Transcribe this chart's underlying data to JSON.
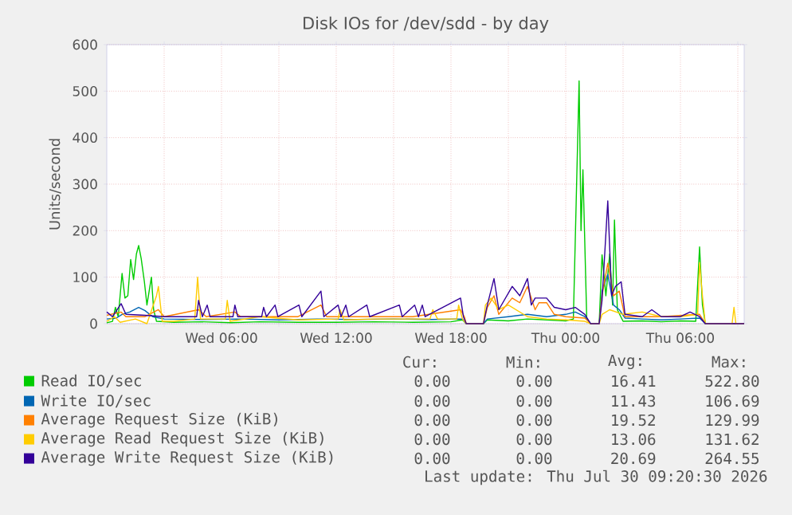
{
  "chart_data": {
    "type": "line",
    "title": "Disk IOs for /dev/sdd - by day",
    "ylabel": "Units/second",
    "xlim": [
      "2026-07-29T00:00",
      "2026-07-30T09:20"
    ],
    "ylim": [
      0,
      600
    ],
    "xticks": [
      {
        "value": "2026-07-29T03:00",
        "label": null
      },
      {
        "value": "2026-07-29T06:00",
        "label": "Wed 06:00"
      },
      {
        "value": "2026-07-29T09:00",
        "label": null
      },
      {
        "value": "2026-07-29T12:00",
        "label": "Wed 12:00"
      },
      {
        "value": "2026-07-29T15:00",
        "label": null
      },
      {
        "value": "2026-07-29T18:00",
        "label": "Wed 18:00"
      },
      {
        "value": "2026-07-29T21:00",
        "label": null
      },
      {
        "value": "2026-07-30T00:00",
        "label": "Thu 00:00"
      },
      {
        "value": "2026-07-30T03:00",
        "label": null
      },
      {
        "value": "2026-07-30T06:00",
        "label": "Thu 06:00"
      },
      {
        "value": "2026-07-30T09:00",
        "label": null
      }
    ],
    "yticks": [
      0,
      100,
      200,
      300,
      400,
      500,
      600
    ],
    "grid": true,
    "legend": "bottom",
    "series": [
      {
        "name": "Read IO/sec",
        "color": "#00cc00",
        "x": [
          "2026-07-29T00:00",
          "2026-07-29T00:18",
          "2026-07-29T00:27",
          "2026-07-29T00:36",
          "2026-07-29T00:48",
          "2026-07-29T00:57",
          "2026-07-29T01:06",
          "2026-07-29T01:15",
          "2026-07-29T01:24",
          "2026-07-29T01:33",
          "2026-07-29T01:40",
          "2026-07-29T01:48",
          "2026-07-29T01:58",
          "2026-07-29T02:06",
          "2026-07-29T02:20",
          "2026-07-29T02:27",
          "2026-07-29T02:36",
          "2026-07-29T03:30",
          "2026-07-29T05:00",
          "2026-07-29T06:30",
          "2026-07-29T08:00",
          "2026-07-29T10:00",
          "2026-07-29T12:00",
          "2026-07-29T14:00",
          "2026-07-29T16:00",
          "2026-07-29T18:00",
          "2026-07-29T18:36",
          "2026-07-29T18:48",
          "2026-07-29T19:42",
          "2026-07-29T19:54",
          "2026-07-29T21:00",
          "2026-07-29T22:00",
          "2026-07-29T23:00",
          "2026-07-30T00:00",
          "2026-07-30T00:24",
          "2026-07-30T00:42",
          "2026-07-30T00:48",
          "2026-07-30T00:54",
          "2026-07-30T01:06",
          "2026-07-30T01:18",
          "2026-07-30T01:45",
          "2026-07-30T01:54",
          "2026-07-30T02:06",
          "2026-07-30T02:18",
          "2026-07-30T02:27",
          "2026-07-30T02:33",
          "2026-07-30T02:42",
          "2026-07-30T03:00",
          "2026-07-30T04:00",
          "2026-07-30T05:00",
          "2026-07-30T06:00",
          "2026-07-30T06:48",
          "2026-07-30T07:00",
          "2026-07-30T07:09",
          "2026-07-30T07:18",
          "2026-07-30T09:20"
        ],
        "values": [
          2,
          5,
          35,
          15,
          108,
          55,
          60,
          138,
          95,
          150,
          168,
          140,
          90,
          40,
          100,
          30,
          5,
          3,
          4,
          2,
          4,
          3,
          3,
          4,
          3,
          4,
          8,
          0,
          0,
          8,
          6,
          10,
          8,
          6,
          10,
          522,
          200,
          331,
          10,
          0,
          0,
          148,
          60,
          150,
          40,
          223,
          30,
          5,
          6,
          4,
          6,
          5,
          165,
          40,
          0,
          0
        ]
      },
      {
        "name": "Write IO/sec",
        "color": "#0066b3",
        "x": [
          "2026-07-29T00:00",
          "2026-07-29T00:30",
          "2026-07-29T00:48",
          "2026-07-29T01:12",
          "2026-07-29T01:40",
          "2026-07-29T02:00",
          "2026-07-29T02:24",
          "2026-07-29T03:00",
          "2026-07-29T05:00",
          "2026-07-29T07:00",
          "2026-07-29T09:00",
          "2026-07-29T11:00",
          "2026-07-29T13:00",
          "2026-07-29T15:00",
          "2026-07-29T17:00",
          "2026-07-29T18:36",
          "2026-07-29T18:48",
          "2026-07-29T19:42",
          "2026-07-29T19:54",
          "2026-07-29T21:00",
          "2026-07-29T22:00",
          "2026-07-29T23:00",
          "2026-07-30T00:00",
          "2026-07-30T00:30",
          "2026-07-30T01:00",
          "2026-07-30T01:18",
          "2026-07-30T01:45",
          "2026-07-30T01:54",
          "2026-07-30T02:12",
          "2026-07-30T02:30",
          "2026-07-30T02:48",
          "2026-07-30T03:06",
          "2026-07-30T04:00",
          "2026-07-30T05:00",
          "2026-07-30T06:00",
          "2026-07-30T07:00",
          "2026-07-30T07:18",
          "2026-07-30T09:20"
        ],
        "values": [
          10,
          12,
          20,
          25,
          35,
          28,
          15,
          10,
          9,
          10,
          8,
          10,
          9,
          10,
          9,
          10,
          0,
          0,
          10,
          15,
          20,
          15,
          20,
          25,
          15,
          0,
          0,
          70,
          106,
          40,
          30,
          12,
          10,
          8,
          10,
          12,
          0,
          0
        ]
      },
      {
        "name": "Average Request Size (KiB)",
        "color": "#ff8000",
        "x": [
          "2026-07-29T00:00",
          "2026-07-29T00:45",
          "2026-07-29T01:00",
          "2026-07-29T02:00",
          "2026-07-29T02:42",
          "2026-07-29T03:00",
          "2026-07-29T04:48",
          "2026-07-29T05:12",
          "2026-07-29T06:42",
          "2026-07-29T07:00",
          "2026-07-29T10:00",
          "2026-07-29T11:12",
          "2026-07-29T11:30",
          "2026-07-29T14:00",
          "2026-07-29T16:00",
          "2026-07-29T18:30",
          "2026-07-29T18:42",
          "2026-07-29T18:48",
          "2026-07-29T19:42",
          "2026-07-29T19:54",
          "2026-07-29T20:15",
          "2026-07-29T20:30",
          "2026-07-29T21:12",
          "2026-07-29T21:36",
          "2026-07-29T22:00",
          "2026-07-29T22:24",
          "2026-07-29T22:36",
          "2026-07-29T23:00",
          "2026-07-29T23:24",
          "2026-07-30T00:00",
          "2026-07-30T01:00",
          "2026-07-30T01:18",
          "2026-07-30T01:45",
          "2026-07-30T01:54",
          "2026-07-30T02:12",
          "2026-07-30T02:30",
          "2026-07-30T02:48",
          "2026-07-30T03:06",
          "2026-07-30T05:00",
          "2026-07-30T07:00",
          "2026-07-30T07:18",
          "2026-07-30T09:20"
        ],
        "values": [
          18,
          25,
          15,
          15,
          30,
          15,
          30,
          15,
          25,
          15,
          15,
          40,
          15,
          15,
          15,
          30,
          15,
          0,
          0,
          35,
          60,
          20,
          55,
          45,
          80,
          30,
          45,
          45,
          20,
          15,
          12,
          0,
          0,
          60,
          130,
          60,
          70,
          15,
          15,
          20,
          0,
          0
        ]
      },
      {
        "name": "Average Read Request Size (KiB)",
        "color": "#ffcc00",
        "x": [
          "2026-07-29T00:00",
          "2026-07-29T00:24",
          "2026-07-29T00:42",
          "2026-07-29T01:30",
          "2026-07-29T02:06",
          "2026-07-29T02:36",
          "2026-07-29T02:42",
          "2026-07-29T02:54",
          "2026-07-29T03:30",
          "2026-07-29T04:36",
          "2026-07-29T04:45",
          "2026-07-29T04:54",
          "2026-07-29T06:12",
          "2026-07-29T06:18",
          "2026-07-29T06:27",
          "2026-07-29T08:00",
          "2026-07-29T10:00",
          "2026-07-29T12:06",
          "2026-07-29T12:12",
          "2026-07-29T12:24",
          "2026-07-29T14:00",
          "2026-07-29T16:54",
          "2026-07-29T17:03",
          "2026-07-29T17:18",
          "2026-07-29T18:18",
          "2026-07-29T18:24",
          "2026-07-29T18:36",
          "2026-07-29T18:48",
          "2026-07-29T19:42",
          "2026-07-29T19:48",
          "2026-07-29T20:06",
          "2026-07-29T20:30",
          "2026-07-29T21:00",
          "2026-07-29T22:00",
          "2026-07-29T23:00",
          "2026-07-30T00:00",
          "2026-07-30T01:00",
          "2026-07-30T01:18",
          "2026-07-30T01:45",
          "2026-07-30T01:54",
          "2026-07-30T02:18",
          "2026-07-30T03:00",
          "2026-07-30T04:00",
          "2026-07-30T05:00",
          "2026-07-30T06:00",
          "2026-07-30T06:54",
          "2026-07-30T07:00",
          "2026-07-30T07:09",
          "2026-07-30T07:18",
          "2026-07-30T08:42",
          "2026-07-30T08:48",
          "2026-07-30T08:54",
          "2026-07-30T09:20"
        ],
        "values": [
          5,
          15,
          3,
          10,
          0,
          60,
          80,
          5,
          5,
          10,
          100,
          10,
          10,
          50,
          5,
          15,
          8,
          10,
          30,
          8,
          10,
          10,
          30,
          10,
          10,
          40,
          10,
          0,
          0,
          40,
          55,
          30,
          40,
          15,
          10,
          8,
          5,
          0,
          0,
          20,
          30,
          20,
          25,
          15,
          15,
          20,
          131,
          60,
          0,
          0,
          35,
          0,
          0
        ]
      },
      {
        "name": "Average Write Request Size (KiB)",
        "color": "#330099",
        "x": [
          "2026-07-29T00:00",
          "2026-07-29T00:18",
          "2026-07-29T00:45",
          "2026-07-29T01:00",
          "2026-07-29T02:00",
          "2026-07-29T03:00",
          "2026-07-29T04:42",
          "2026-07-29T04:48",
          "2026-07-29T05:00",
          "2026-07-29T05:15",
          "2026-07-29T05:24",
          "2026-07-29T06:36",
          "2026-07-29T06:42",
          "2026-07-29T06:51",
          "2026-07-29T08:06",
          "2026-07-29T08:12",
          "2026-07-29T08:21",
          "2026-07-29T08:48",
          "2026-07-29T08:57",
          "2026-07-29T10:03",
          "2026-07-29T10:12",
          "2026-07-29T11:12",
          "2026-07-29T11:21",
          "2026-07-29T12:06",
          "2026-07-29T12:15",
          "2026-07-29T12:30",
          "2026-07-29T12:39",
          "2026-07-29T13:36",
          "2026-07-29T13:45",
          "2026-07-29T15:18",
          "2026-07-29T15:27",
          "2026-07-29T16:06",
          "2026-07-29T16:18",
          "2026-07-29T16:30",
          "2026-07-29T16:39",
          "2026-07-29T18:30",
          "2026-07-29T18:39",
          "2026-07-29T18:48",
          "2026-07-29T19:42",
          "2026-07-29T19:54",
          "2026-07-29T20:15",
          "2026-07-29T20:30",
          "2026-07-29T21:12",
          "2026-07-29T21:36",
          "2026-07-29T22:00",
          "2026-07-29T22:12",
          "2026-07-29T22:24",
          "2026-07-29T23:00",
          "2026-07-29T23:24",
          "2026-07-30T00:00",
          "2026-07-30T00:30",
          "2026-07-30T01:00",
          "2026-07-30T01:18",
          "2026-07-30T01:45",
          "2026-07-30T01:54",
          "2026-07-30T02:12",
          "2026-07-30T02:24",
          "2026-07-30T02:36",
          "2026-07-30T02:54",
          "2026-07-30T03:06",
          "2026-07-30T04:00",
          "2026-07-30T04:30",
          "2026-07-30T05:00",
          "2026-07-30T06:00",
          "2026-07-30T06:30",
          "2026-07-30T07:00",
          "2026-07-30T07:18",
          "2026-07-30T09:20"
        ],
        "values": [
          25,
          15,
          43,
          20,
          18,
          15,
          15,
          50,
          15,
          40,
          15,
          15,
          40,
          15,
          15,
          35,
          15,
          40,
          15,
          40,
          15,
          70,
          15,
          40,
          15,
          40,
          15,
          40,
          15,
          40,
          15,
          40,
          15,
          40,
          15,
          55,
          15,
          0,
          0,
          40,
          97,
          30,
          80,
          60,
          97,
          40,
          55,
          55,
          35,
          30,
          35,
          20,
          0,
          0,
          50,
          264,
          60,
          80,
          90,
          20,
          15,
          30,
          15,
          15,
          25,
          15,
          0,
          0
        ]
      }
    ],
    "annotations": [
      "Cur:",
      "Min:",
      "Avg:",
      "Max:",
      "0.00",
      "0.00",
      "16.41",
      "522.80",
      "0.00",
      "0.00",
      "11.43",
      "106.69",
      "0.00",
      "0.00",
      "19.52",
      "129.99",
      "0.00",
      "0.00",
      "13.06",
      "131.62",
      "0.00",
      "0.00",
      "20.69",
      "264.55",
      "Last update: Thu Jul 30 09:20:30 2026"
    ]
  }
}
